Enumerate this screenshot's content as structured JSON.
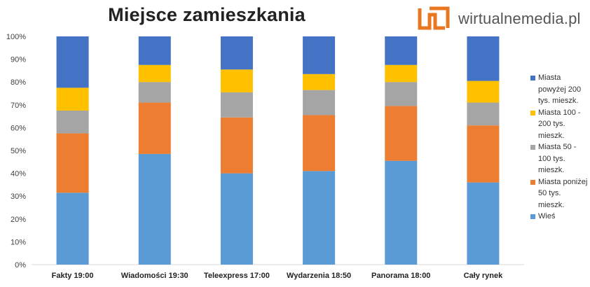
{
  "brand": {
    "name": "wirtualnemedia.pl",
    "accent": "#e87722"
  },
  "chart_data": {
    "type": "bar",
    "stacked": true,
    "percent": true,
    "title": "Miejsce zamieszkania",
    "categories": [
      "Fakty 19:00",
      "Wiadomości 19:30",
      "Teleexpress 17:00",
      "Wydarzenia 18:50",
      "Panorama 18:00",
      "Cały rynek"
    ],
    "y_ticks": [
      "0%",
      "10%",
      "20%",
      "30%",
      "40%",
      "50%",
      "60%",
      "70%",
      "80%",
      "90%",
      "100%"
    ],
    "ylim": [
      0,
      100
    ],
    "series": [
      {
        "name": "Wieś",
        "color": "#5b9bd5",
        "values": [
          31.5,
          48.5,
          40,
          41,
          45.5,
          36
        ]
      },
      {
        "name": "Miasta poniżej 50 tys. mieszk.",
        "color": "#ed7d31",
        "values": [
          26,
          22.5,
          24.5,
          24.5,
          24,
          25
        ]
      },
      {
        "name": "Miasta 50 - 100 tys. mieszk.",
        "color": "#a5a5a5",
        "values": [
          10,
          9,
          11,
          11,
          10.5,
          10
        ]
      },
      {
        "name": "Miasta 100 - 200 tys. mieszk.",
        "color": "#ffc000",
        "values": [
          10,
          7.5,
          10,
          7,
          7.5,
          9.5
        ]
      },
      {
        "name": "Miasta powyżej 200 tys. mieszk.",
        "color": "#4472c4",
        "values": [
          22.5,
          12.5,
          14.5,
          16.5,
          12.5,
          19.5
        ]
      }
    ],
    "legend": [
      {
        "label": "Miasta powyżej 200 tys. mieszk.",
        "color": "#4472c4"
      },
      {
        "label": "Miasta 100 - 200 tys. mieszk.",
        "color": "#ffc000"
      },
      {
        "label": "Miasta 50 - 100 tys. mieszk.",
        "color": "#a5a5a5"
      },
      {
        "label": "Miasta poniżej 50 tys. mieszk.",
        "color": "#ed7d31"
      },
      {
        "label": "Wieś",
        "color": "#5b9bd5"
      }
    ],
    "legend_position": "right",
    "grid": false
  }
}
